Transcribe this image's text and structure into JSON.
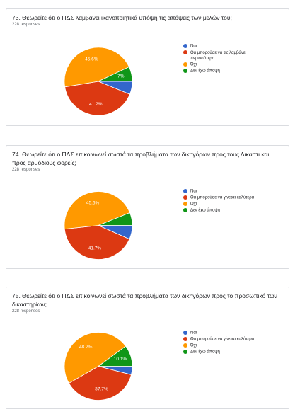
{
  "chart_data": [
    {
      "type": "pie",
      "title": "73. Θεωρείτε ότι ο ΠΔΣ λαμβάνει ικανοποιητικά υπόψη τις απόψεις των μελών του;",
      "subtitle": "228 responses",
      "categories": [
        "Ναι",
        "Θα μπορούσε να τις λαμβάνει περισσότερο",
        "Όχι",
        "Δεν έχω άποψη"
      ],
      "values": [
        6.2,
        41.2,
        45.6,
        7
      ],
      "value_labels": [
        null,
        "41.2%",
        "45.6%",
        "7%"
      ],
      "colors": [
        "#3366cc",
        "#dc3912",
        "#ff9900",
        "#109618"
      ]
    },
    {
      "type": "pie",
      "title": "74. Θεωρείτε ότι ο ΠΔΣ επικοινωνεί σωστά τα προβλήματα των δικηγόρων προς τους Δικαστι και προς αρμόδιους φορείς;",
      "subtitle": "228 responses",
      "categories": [
        "Ναι",
        "Θα μπορούσε να γίνεται καλύτερα",
        "Όχι",
        "Δεν έχω άποψη"
      ],
      "values": [
        6.6,
        41.7,
        45.6,
        6.1
      ],
      "value_labels": [
        null,
        "41.7%",
        "45.6%",
        null
      ],
      "colors": [
        "#3366cc",
        "#dc3912",
        "#ff9900",
        "#109618"
      ]
    },
    {
      "type": "pie",
      "title": "75. Θεωρείτε ότι ο ΠΔΣ επικοινωνεί σωστά τα προβλήματα των δικηγόρων προς το προσωπικό των δικαστηρίων;",
      "subtitle": "228 responses",
      "categories": [
        "Ναι",
        "Θα μπορούσε να γίνεται καλύτερα",
        "Όχι",
        "Δεν έχω άποψη"
      ],
      "values": [
        4,
        37.7,
        48.2,
        10.1
      ],
      "value_labels": [
        null,
        "37.7%",
        "48.2%",
        "10.1%"
      ],
      "colors": [
        "#3366cc",
        "#dc3912",
        "#ff9900",
        "#109618"
      ]
    }
  ]
}
